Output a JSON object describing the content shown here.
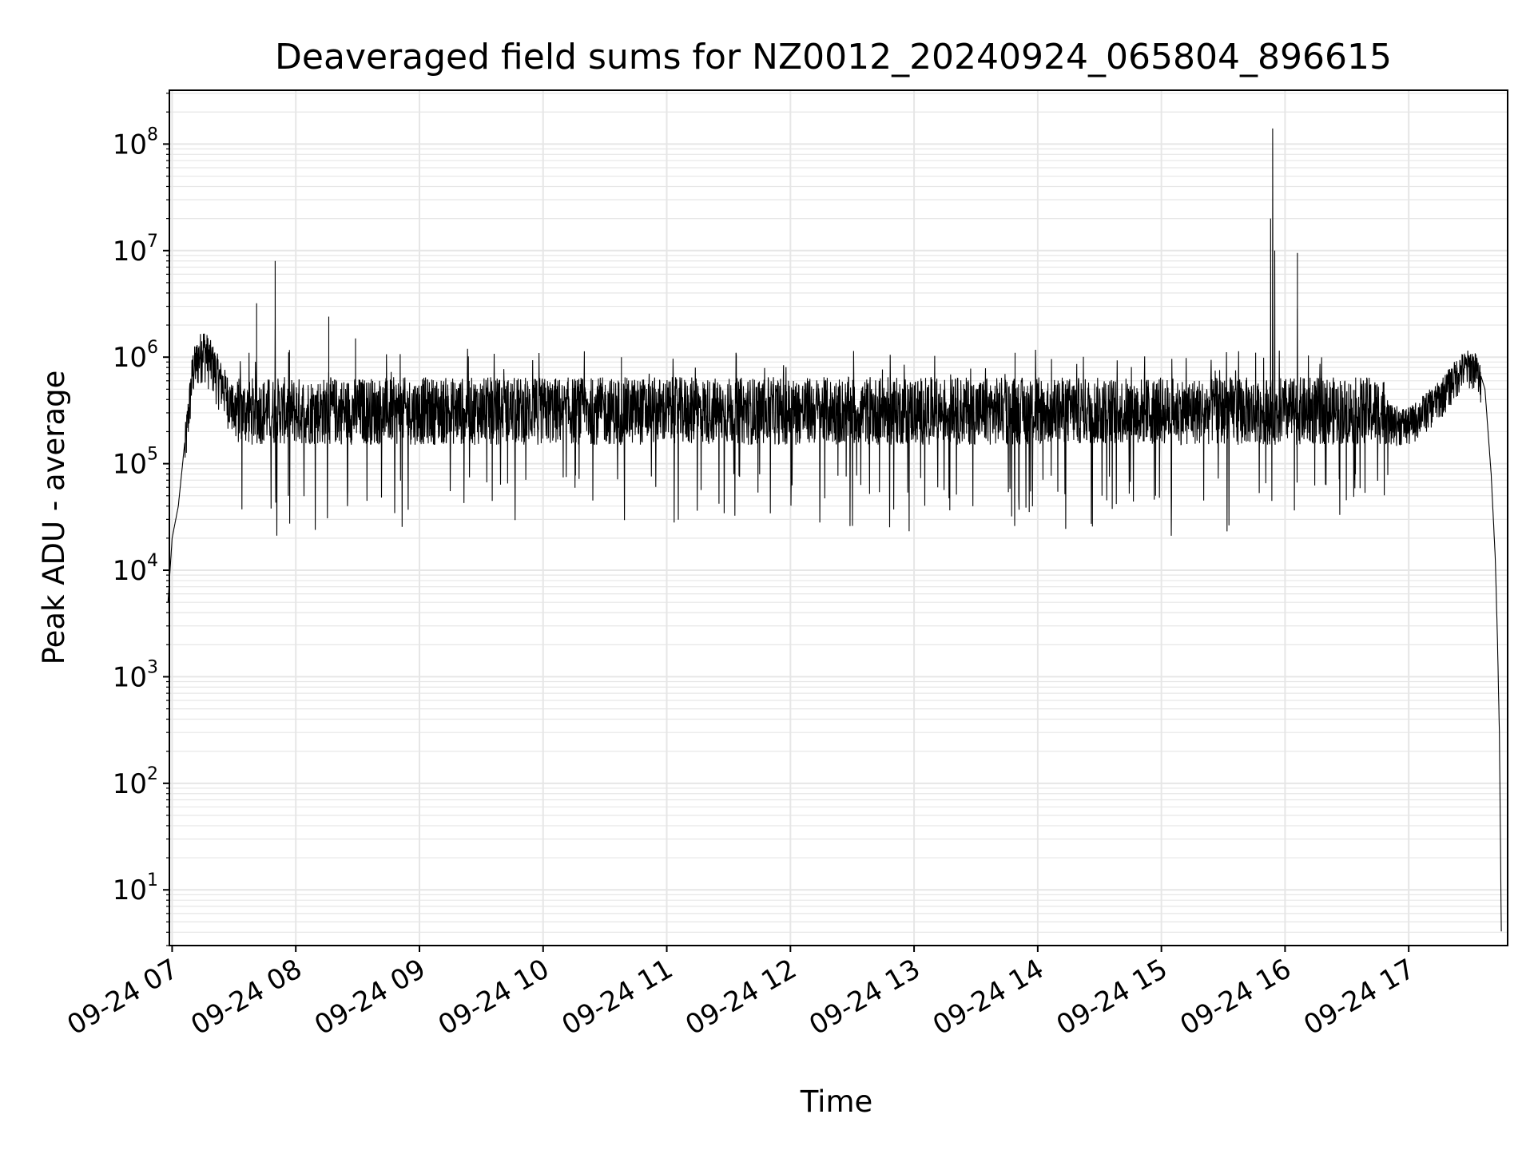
{
  "chart_data": {
    "type": "line",
    "title": "Deaveraged field sums for NZ0012_20240924_065804_896615",
    "xlabel": "Time",
    "ylabel": "Peak ADU - average",
    "x_tick_labels": [
      "09-24 07",
      "09-24 08",
      "09-24 09",
      "09-24 10",
      "09-24 11",
      "09-24 12",
      "09-24 13",
      "09-24 14",
      "09-24 15",
      "09-24 16",
      "09-24 17"
    ],
    "y_tick_labels": [
      "10^1",
      "10^2",
      "10^3",
      "10^4",
      "10^5",
      "10^6",
      "10^7",
      "10^8"
    ],
    "y_scale": "log",
    "xlim": [
      "2024-09-24 06:58:40",
      "2024-09-24 17:48:00"
    ],
    "ylim": [
      3,
      320000000
    ],
    "grid": true,
    "line_color": "#000000",
    "grid_color": "#e6e6e6",
    "envelope": {
      "x": [
        "2024-09-24 06:58:00",
        "2024-09-24 07:00:00",
        "2024-09-24 07:03:00",
        "2024-09-24 07:06:00",
        "2024-09-24 07:10:00",
        "2024-09-24 07:15:00",
        "2024-09-24 07:20:00",
        "2024-09-24 07:30:00",
        "2024-09-24 16:50:00",
        "2024-09-24 17:00:00",
        "2024-09-24 17:15:00",
        "2024-09-24 17:25:00",
        "2024-09-24 17:30:00",
        "2024-09-24 17:33:00",
        "2024-09-24 17:37:00",
        "2024-09-24 17:40:00",
        "2024-09-24 17:42:00",
        "2024-09-24 17:43:00",
        "2024-09-24 17:44:00",
        "2024-09-24 17:45:00"
      ],
      "y": [
        5000,
        20000,
        40000,
        150000,
        900000,
        1500000,
        1000000,
        400000,
        300000,
        280000,
        500000,
        900000,
        1000000,
        900000,
        500000,
        80000,
        13000,
        2500,
        300,
        3
      ]
    },
    "noise_band": {
      "low": 150000,
      "high": 650000,
      "dip_low": 20000,
      "jump_high": 1100000
    },
    "spikes": {
      "x": [
        "2024-09-24 07:41:00",
        "2024-09-24 07:50:00",
        "2024-09-24 08:16:00",
        "2024-09-24 08:29:00",
        "2024-09-24 10:38:00",
        "2024-09-24 13:49:00",
        "2024-09-24 15:53:00",
        "2024-09-24 15:54:00",
        "2024-09-24 15:55:00",
        "2024-09-24 16:06:00"
      ],
      "y": [
        3200000,
        8000000,
        2400000,
        1500000,
        1000000,
        1100000,
        20000000,
        140000000,
        10000000,
        9500000
      ]
    }
  }
}
